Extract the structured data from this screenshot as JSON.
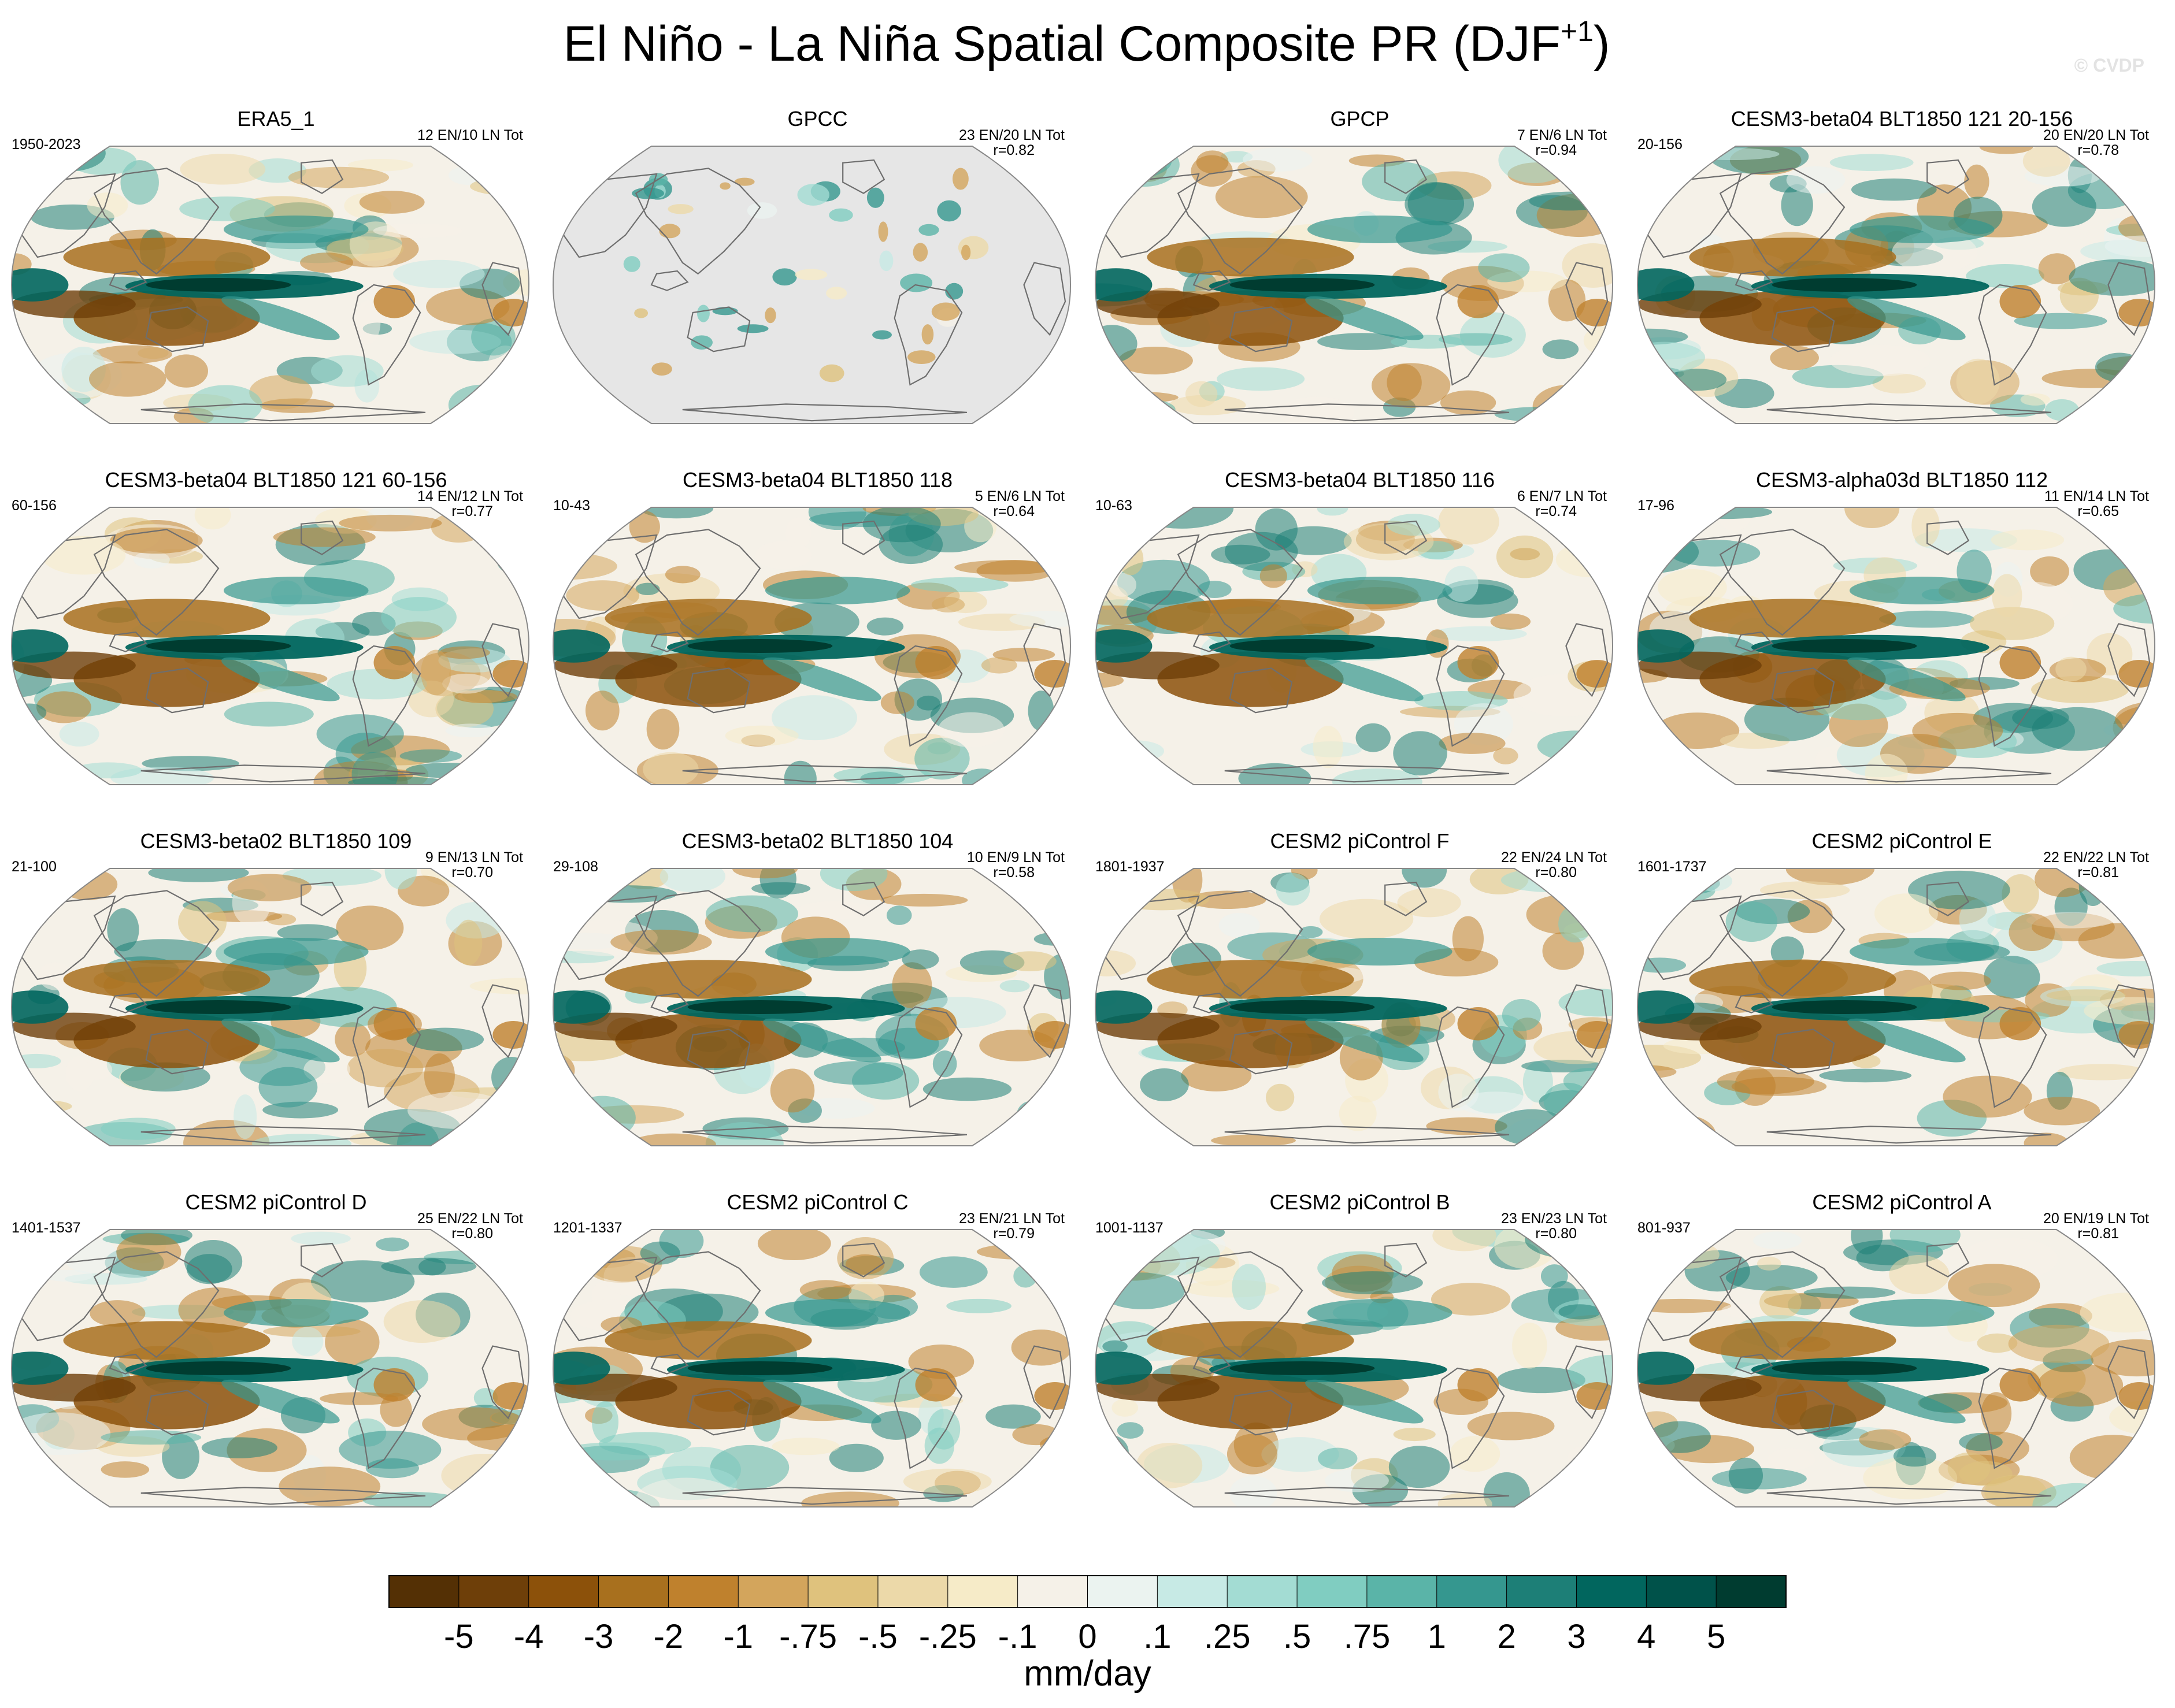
{
  "figure": {
    "title_main": "El Niño - La Niña Spatial Composite PR (DJF",
    "title_sup": "+1",
    "title_end": ")",
    "watermark": "© CVDP"
  },
  "chart_data": {
    "type": "heatmap",
    "units": "mm/day",
    "colorbar": {
      "ticks": [
        "-5",
        "-4",
        "-3",
        "-2",
        "-1",
        "-.75",
        "-.5",
        "-.25",
        "-.1",
        "0",
        ".1",
        ".25",
        ".5",
        ".75",
        "1",
        "2",
        "3",
        "4",
        "5"
      ],
      "colors": [
        "#543005",
        "#6e3f09",
        "#8c510a",
        "#a8701e",
        "#bf812d",
        "#d3a55c",
        "#dfc27d",
        "#ecd9a9",
        "#f6ebc8",
        "#f5f1e8",
        "#ebf3f0",
        "#c7eae5",
        "#a3dcd3",
        "#80cdc1",
        "#5ab4a8",
        "#35978f",
        "#1d7f77",
        "#01665e",
        "#00524a",
        "#003c30"
      ],
      "label": "mm/day"
    },
    "panels": [
      {
        "title": "ERA5_1",
        "left": "1950-2023",
        "right": "12 EN/10 LN Tot",
        "corr": "",
        "land_only": false,
        "seed": 1
      },
      {
        "title": "GPCC",
        "left": "",
        "right": "23 EN/20 LN Tot",
        "corr": "r=0.82",
        "land_only": true,
        "seed": 2
      },
      {
        "title": "GPCP",
        "left": "",
        "right": "7 EN/6 LN Tot",
        "corr": "r=0.94",
        "land_only": false,
        "seed": 3
      },
      {
        "title": "CESM3-beta04 BLT1850 121 20-156",
        "left": "20-156",
        "right": "20 EN/20 LN Tot",
        "corr": "r=0.78",
        "land_only": false,
        "seed": 4
      },
      {
        "title": "CESM3-beta04 BLT1850 121 60-156",
        "left": "60-156",
        "right": "14 EN/12 LN Tot",
        "corr": "r=0.77",
        "land_only": false,
        "seed": 5
      },
      {
        "title": "CESM3-beta04 BLT1850 118",
        "left": "10-43",
        "right": "5 EN/6 LN Tot",
        "corr": "r=0.64",
        "land_only": false,
        "seed": 6
      },
      {
        "title": "CESM3-beta04 BLT1850 116",
        "left": "10-63",
        "right": "6 EN/7 LN Tot",
        "corr": "r=0.74",
        "land_only": false,
        "seed": 7
      },
      {
        "title": "CESM3-alpha03d BLT1850 112",
        "left": "17-96",
        "right": "11 EN/14 LN Tot",
        "corr": "r=0.65",
        "land_only": false,
        "seed": 8
      },
      {
        "title": "CESM3-beta02 BLT1850 109",
        "left": "21-100",
        "right": "9 EN/13 LN Tot",
        "corr": "r=0.70",
        "land_only": false,
        "seed": 9
      },
      {
        "title": "CESM3-beta02 BLT1850 104",
        "left": "29-108",
        "right": "10 EN/9 LN Tot",
        "corr": "r=0.58",
        "land_only": false,
        "seed": 10
      },
      {
        "title": "CESM2 piControl F",
        "left": "1801-1937",
        "right": "22 EN/24 LN Tot",
        "corr": "r=0.80",
        "land_only": false,
        "seed": 11
      },
      {
        "title": "CESM2 piControl E",
        "left": "1601-1737",
        "right": "22 EN/22 LN Tot",
        "corr": "r=0.81",
        "land_only": false,
        "seed": 12
      },
      {
        "title": "CESM2 piControl D",
        "left": "1401-1537",
        "right": "25 EN/22 LN Tot",
        "corr": "r=0.80",
        "land_only": false,
        "seed": 13
      },
      {
        "title": "CESM2 piControl C",
        "left": "1201-1337",
        "right": "23 EN/21 LN Tot",
        "corr": "r=0.79",
        "land_only": false,
        "seed": 14
      },
      {
        "title": "CESM2 piControl B",
        "left": "1001-1137",
        "right": "23 EN/23 LN Tot",
        "corr": "r=0.80",
        "land_only": false,
        "seed": 15
      },
      {
        "title": "CESM2 piControl A",
        "left": "801-937",
        "right": "20 EN/19 LN Tot",
        "corr": "r=0.81",
        "land_only": false,
        "seed": 16
      }
    ]
  }
}
